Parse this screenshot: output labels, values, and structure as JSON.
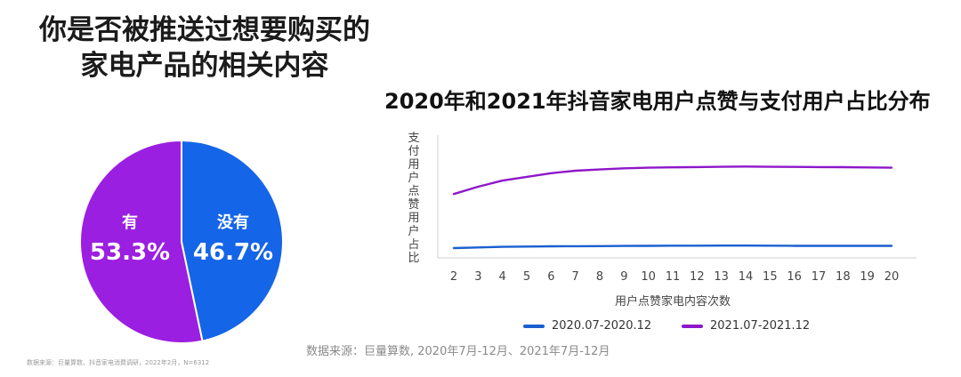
{
  "left_panel": {
    "title_lines": [
      "你是否被推送过想要购买的",
      "家电产品的相关内容"
    ],
    "footnote": "数据来源：巨量算数、抖音家电消费调研，2022年2月，N=6312"
  },
  "source_note": "数据来源：巨量算数, 2020年7月-12月、2021年7月-12月",
  "chart_data": [
    {
      "type": "pie",
      "slices": [
        {
          "label": "有",
          "value": 53.3,
          "value_label": "53.3%",
          "color": "#9b1fe0"
        },
        {
          "label": "没有",
          "value": 46.7,
          "value_label": "46.7%",
          "color": "#1565e8"
        }
      ]
    },
    {
      "type": "line",
      "title": "2020年和2021年抖音家电用户点赞与支付用户占比分布",
      "xlabel": "用户点赞家电内容次数",
      "ylabel": "支付用户点赞用户占比",
      "x": [
        2,
        3,
        4,
        5,
        6,
        7,
        8,
        9,
        10,
        11,
        12,
        13,
        14,
        15,
        16,
        17,
        18,
        19,
        20
      ],
      "ylim": [
        0,
        1
      ],
      "y_ticks_shown": false,
      "series": [
        {
          "name": "2020.07-2020.12",
          "color": "#1a5fd0",
          "values": [
            0.08,
            0.085,
            0.09,
            0.092,
            0.094,
            0.095,
            0.096,
            0.097,
            0.098,
            0.099,
            0.099,
            0.1,
            0.1,
            0.099,
            0.098,
            0.098,
            0.098,
            0.098,
            0.098
          ]
        },
        {
          "name": "2021.07-2021.12",
          "color": "#8e17c9",
          "values": [
            0.52,
            0.58,
            0.63,
            0.66,
            0.69,
            0.71,
            0.72,
            0.73,
            0.735,
            0.738,
            0.74,
            0.742,
            0.744,
            0.742,
            0.741,
            0.74,
            0.739,
            0.737,
            0.735
          ]
        }
      ]
    }
  ]
}
